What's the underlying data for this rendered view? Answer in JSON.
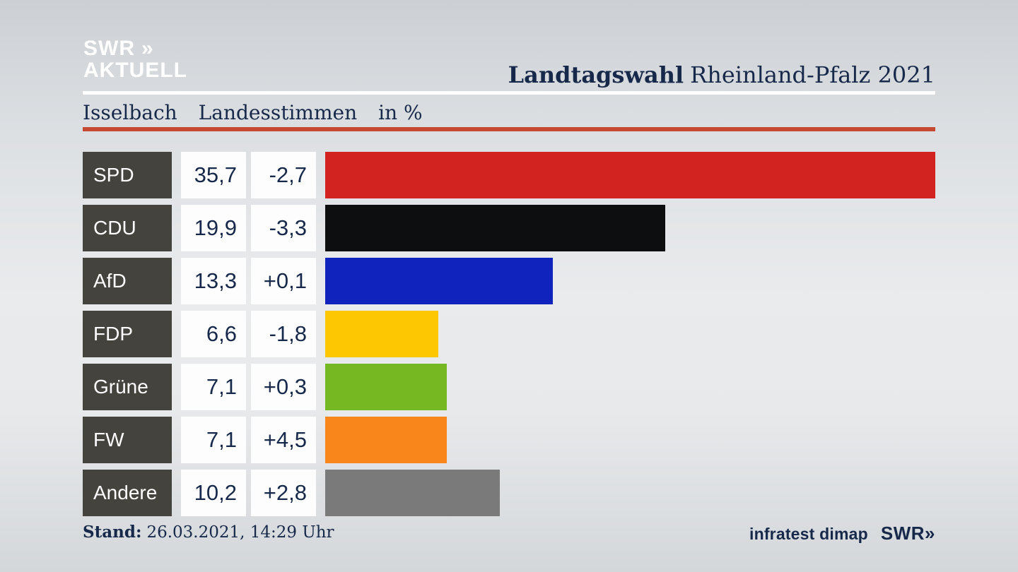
{
  "header": {
    "logo": {
      "line1": "SWR",
      "chevrons": "»",
      "line2": "AKTUELL"
    },
    "title": {
      "bold": "Landtagswahl",
      "regular": "Rheinland-Pfalz 2021"
    },
    "subtitle": {
      "region": "Isselbach",
      "category": "Landesstimmen",
      "unit": "in %"
    }
  },
  "chart_data": {
    "type": "bar",
    "orientation": "horizontal",
    "title": "Landtagswahl Rheinland-Pfalz 2021",
    "subtitle": "Isselbach Landesstimmen in %",
    "unit": "%",
    "categories": [
      "SPD",
      "CDU",
      "AfD",
      "FDP",
      "Grüne",
      "FW",
      "Andere"
    ],
    "values": [
      35.7,
      19.9,
      13.3,
      6.6,
      7.1,
      7.1,
      10.2
    ],
    "value_labels": [
      "35,7",
      "19,9",
      "13,3",
      "6,6",
      "7,1",
      "7,1",
      "10,2"
    ],
    "changes": [
      "-2,7",
      "-3,3",
      "+0,1",
      "-1,8",
      "+0,3",
      "+4,5",
      "+2,8"
    ],
    "bar_colors": [
      "#d22321",
      "#0d0e10",
      "#1123bd",
      "#fdc702",
      "#76b822",
      "#f9861a",
      "#7a7a7a"
    ],
    "xlim": [
      0,
      35.7
    ],
    "grid": false,
    "legend": false
  },
  "footer": {
    "stand_label": "Stand:",
    "stand_value": "26.03.2021, 14:29 Uhr",
    "source": "infratest dimap",
    "network_logo": {
      "text": "SWR",
      "chevrons": "»"
    }
  },
  "colors": {
    "text_navy": "#17294a",
    "rule_red": "#c54a32",
    "rule_white": "#ffffff",
    "party_box": "#45433e",
    "value_box": "#fdfdfe",
    "logo_white": "#ffffff"
  }
}
